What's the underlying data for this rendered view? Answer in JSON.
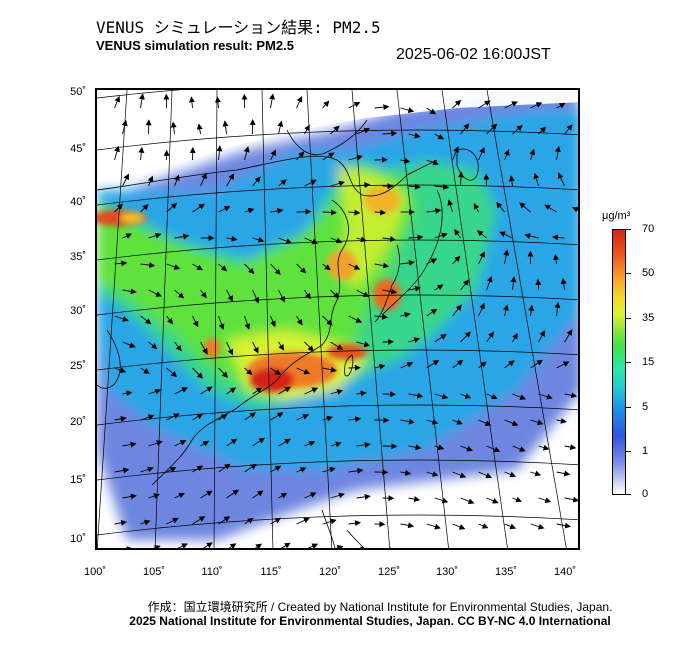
{
  "header": {
    "title_jp": "VENUS シミュレーション結果: PM2.5",
    "title_en": "VENUS simulation result: PM2.5",
    "datetime": "2025-06-02 16:00JST"
  },
  "map": {
    "lat_labels": [
      "50˚",
      "45˚",
      "40˚",
      "35˚",
      "30˚",
      "25˚",
      "20˚",
      "15˚",
      "10˚"
    ],
    "lon_labels": [
      "100˚",
      "105˚",
      "110˚",
      "115˚",
      "120˚",
      "125˚",
      "130˚",
      "135˚",
      "140˚"
    ]
  },
  "colorbar": {
    "unit": "μg/m³",
    "ticks": [
      "70",
      "50",
      "35",
      "15",
      "5",
      "1",
      "0"
    ]
  },
  "footer": {
    "credit": "作成：国立環境研究所 / Created by National Institute for Environmental Studies, Japan.",
    "copyright": "2025 National Institute for Environmental Studies, Japan. CC BY-NC 4.0 International"
  }
}
